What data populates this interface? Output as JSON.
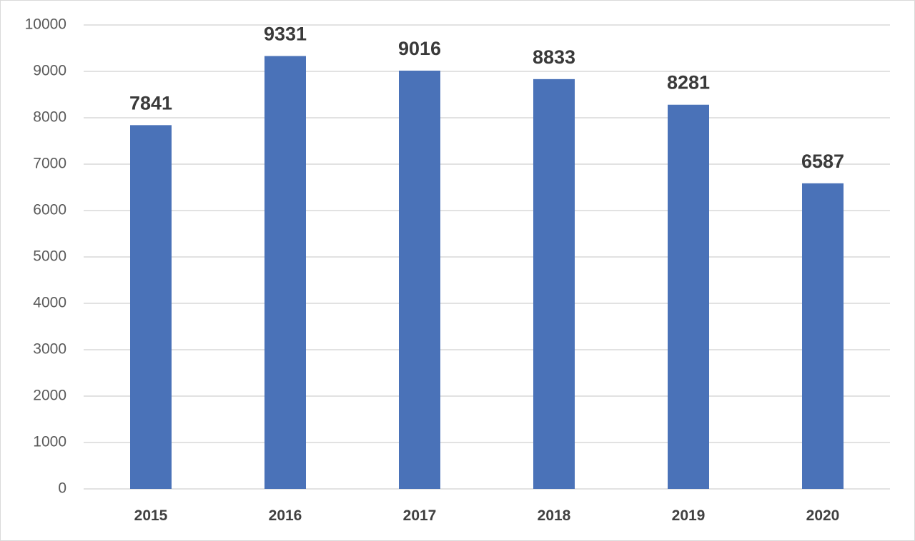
{
  "chart_data": {
    "type": "bar",
    "title": "",
    "xlabel": "",
    "ylabel": "",
    "categories": [
      "2015",
      "2016",
      "2017",
      "2018",
      "2019",
      "2020"
    ],
    "values": [
      7841,
      9331,
      9016,
      8833,
      8281,
      6587
    ],
    "data_labels": [
      "7841",
      "9331",
      "9016",
      "8833",
      "8281",
      "6587"
    ],
    "ylim": [
      0,
      10000
    ],
    "yticks": [
      0,
      1000,
      2000,
      3000,
      4000,
      5000,
      6000,
      7000,
      8000,
      9000,
      10000
    ],
    "ytick_labels": [
      "0",
      "1000",
      "2000",
      "3000",
      "4000",
      "5000",
      "6000",
      "7000",
      "8000",
      "9000",
      "10000"
    ],
    "grid": true,
    "legend": "none",
    "colors": {
      "bar": "#4a72b8",
      "grid": "#d9d9d9",
      "tick_text": "#595959",
      "category_text": "#404040",
      "data_label_text": "#3a3a3a"
    }
  }
}
